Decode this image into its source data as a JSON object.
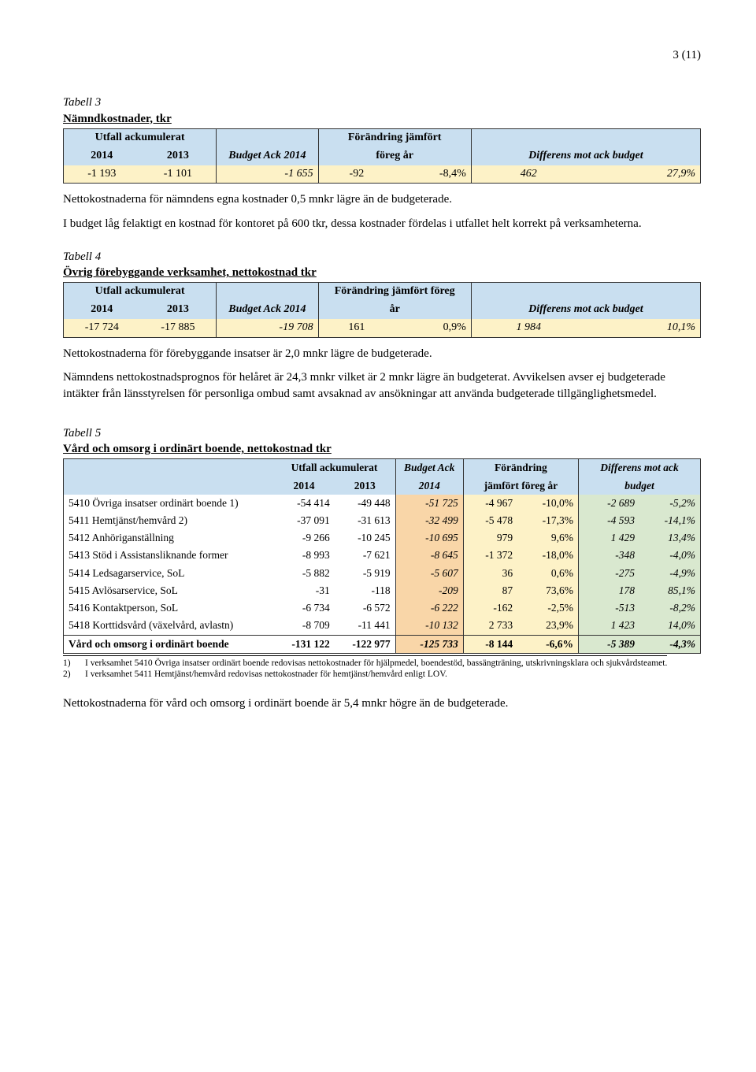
{
  "page_number": "3 (11)",
  "tabell3": {
    "label": "Tabell 3",
    "title": "Nämndkostnader, tkr",
    "head": {
      "utfall_ack": "Utfall ackumulerat",
      "c2014": "2014",
      "c2013": "2013",
      "budget_ack": "Budget Ack 2014",
      "forandring_top": "Förändring jämfört",
      "forandring_bot": "föreg år",
      "differens": "Differens mot ack budget"
    },
    "row": {
      "v2014": "-1 193",
      "v2013": "-1 101",
      "budget": "-1 655",
      "for_abs": "-92",
      "for_pct": "-8,4%",
      "diff_abs": "462",
      "diff_pct": "27,9%"
    },
    "colors": {
      "header_bg": "#c9dff0",
      "row_bg": "#fdf2c7",
      "border": "#333333"
    }
  },
  "p_after_t3_1": "Nettokostnaderna för nämndens egna kostnader 0,5 mnkr lägre än de budgeterade.",
  "p_after_t3_2": "I budget låg felaktigt en kostnad för kontoret på 600 tkr, dessa kostnader fördelas i utfallet helt korrekt på verksamheterna.",
  "tabell4": {
    "label": "Tabell 4",
    "title": "Övrig förebyggande verksamhet, nettokostnad tkr",
    "head": {
      "utfall_ack": "Utfall ackumulerat",
      "c2014": "2014",
      "c2013": "2013",
      "budget_ack": "Budget Ack 2014",
      "forandring_top": "Förändring jämfört föreg",
      "forandring_bot": "år",
      "differens": "Differens mot ack budget"
    },
    "row": {
      "v2014": "-17 724",
      "v2013": "-17 885",
      "budget": "-19 708",
      "for_abs": "161",
      "for_pct": "0,9%",
      "diff_abs": "1 984",
      "diff_pct": "10,1%"
    }
  },
  "p_after_t4_1": "Nettokostnaderna för förebyggande insatser är 2,0 mnkr lägre de budgeterade.",
  "p_after_t4_2": "Nämndens nettokostnadsprognos för helåret är 24,3 mnkr vilket är 2 mnkr lägre än budgeterat. Avvikelsen avser ej budgeterade intäkter från länsstyrelsen för personliga ombud samt avsaknad av ansökningar att använda budgeterade tillgänglighetsmedel.",
  "tabell5": {
    "label": "Tabell 5",
    "title": "Vård och omsorg i ordinärt boende, nettokostnad tkr",
    "head": {
      "utfall_ack": "Utfall ackumulerat",
      "c2014": "2014",
      "c2013": "2013",
      "budget_top": "Budget Ack",
      "budget_bot": "2014",
      "for_top": "Förändring",
      "for_bot": "jämfört föreg år",
      "diff_top": "Differens mot ack",
      "diff_bot": "budget"
    },
    "rows": [
      {
        "label": "5410 Övriga insatser ordinärt boende 1)",
        "u14": "-54 414",
        "u13": "-49 448",
        "bud": "-51 725",
        "fa": "-4 967",
        "fp": "-10,0%",
        "da": "-2 689",
        "dp": "-5,2%"
      },
      {
        "label": "5411 Hemtjänst/hemvård 2)",
        "u14": "-37 091",
        "u13": "-31 613",
        "bud": "-32 499",
        "fa": "-5 478",
        "fp": "-17,3%",
        "da": "-4 593",
        "dp": "-14,1%"
      },
      {
        "label": "5412 Anhöriganställning",
        "u14": "-9 266",
        "u13": "-10 245",
        "bud": "-10 695",
        "fa": "979",
        "fp": "9,6%",
        "da": "1 429",
        "dp": "13,4%"
      },
      {
        "label": "5413 Stöd i Assistansliknande former",
        "u14": "-8 993",
        "u13": "-7 621",
        "bud": "-8 645",
        "fa": "-1 372",
        "fp": "-18,0%",
        "da": "-348",
        "dp": "-4,0%"
      },
      {
        "label": "5414 Ledsagarservice, SoL",
        "u14": "-5 882",
        "u13": "-5 919",
        "bud": "-5 607",
        "fa": "36",
        "fp": "0,6%",
        "da": "-275",
        "dp": "-4,9%"
      },
      {
        "label": "5415 Avlösarservice, SoL",
        "u14": "-31",
        "u13": "-118",
        "bud": "-209",
        "fa": "87",
        "fp": "73,6%",
        "da": "178",
        "dp": "85,1%"
      },
      {
        "label": "5416 Kontaktperson, SoL",
        "u14": "-6 734",
        "u13": "-6 572",
        "bud": "-6 222",
        "fa": "-162",
        "fp": "-2,5%",
        "da": "-513",
        "dp": "-8,2%"
      },
      {
        "label": "5418 Korttidsvård (växelvård, avlastn)",
        "u14": "-8 709",
        "u13": "-11 441",
        "bud": "-10 132",
        "fa": "2 733",
        "fp": "23,9%",
        "da": "1 423",
        "dp": "14,0%"
      }
    ],
    "total": {
      "label": "Vård och omsorg i ordinärt boende",
      "u14": "-131 122",
      "u13": "-122 977",
      "bud": "-125 733",
      "fa": "-8 144",
      "fp": "-6,6%",
      "da": "-5 389",
      "dp": "-4,3%"
    },
    "colors": {
      "header_bg": "#c9dff0",
      "budget_bg": "#f9d6a8",
      "for_bg": "#fdf2c7",
      "diff_bg": "#d9e8cf"
    }
  },
  "footnote1_num": "1)",
  "footnote1_txt": "I verksamhet 5410 Övriga insatser ordinärt boende redovisas nettokostnader för hjälpmedel, boendestöd, bassängträning, utskrivningsklara och sjukvårdsteamet.",
  "footnote2_num": "2)",
  "footnote2_txt": "I verksamhet 5411 Hemtjänst/hemvård redovisas nettokostnader för hemtjänst/hemvård enligt LOV.",
  "p_after_t5": "Nettokostnaderna för vård och omsorg i ordinärt boende är 5,4 mnkr högre än de budgeterade."
}
